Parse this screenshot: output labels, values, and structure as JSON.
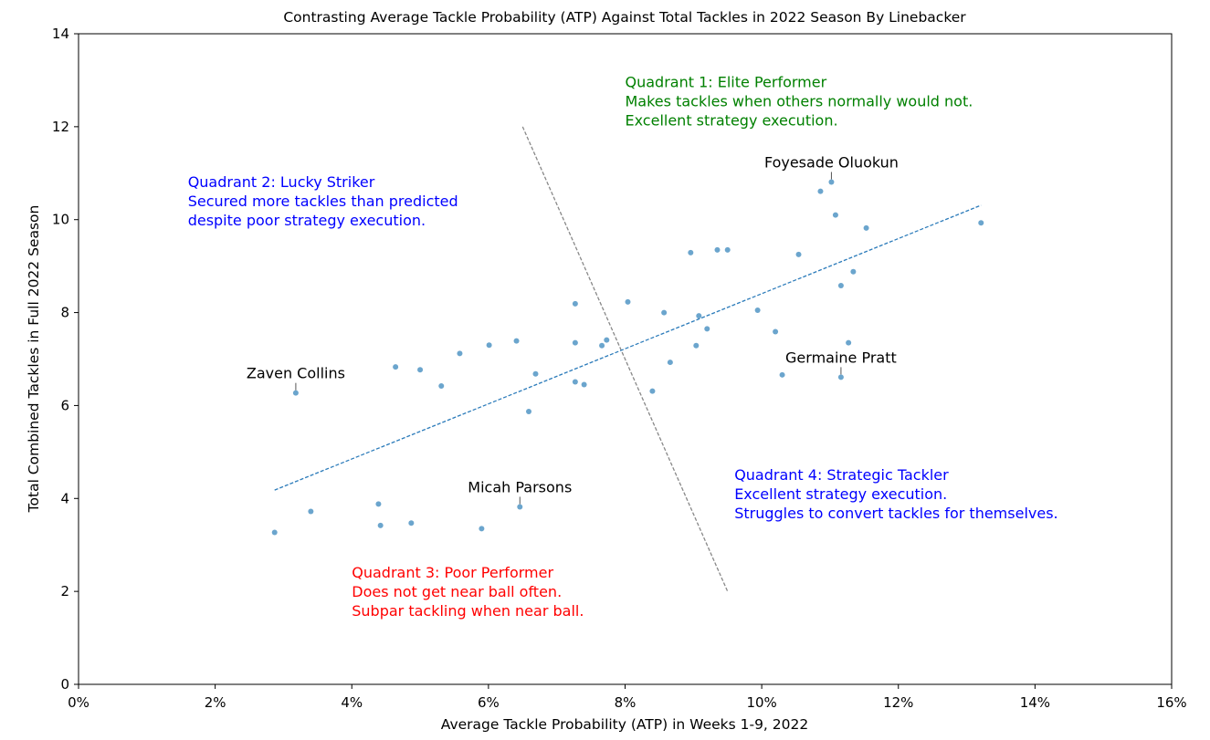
{
  "chart_data": {
    "type": "scatter",
    "title": "Contrasting Average Tackle Probability (ATP) Against Total Tackles in 2022 Season By Linebacker",
    "xlabel": "Average Tackle Probability (ATP) in Weeks 1-9, 2022",
    "ylabel": "Total Combined Tackles in Full 2022 Season",
    "xlim": [
      0,
      16
    ],
    "ylim": [
      0,
      14
    ],
    "x_ticks": [
      0,
      2,
      4,
      6,
      8,
      10,
      12,
      14,
      16
    ],
    "x_tick_labels": [
      "0%",
      "2%",
      "4%",
      "6%",
      "8%",
      "10%",
      "12%",
      "14%",
      "16%"
    ],
    "y_ticks": [
      0,
      2,
      4,
      6,
      8,
      10,
      12,
      14
    ],
    "y_tick_labels": [
      "0",
      "2",
      "4",
      "6",
      "8",
      "10",
      "12",
      "14"
    ],
    "grid": false,
    "point_color": "#5b9bc8",
    "points": [
      {
        "x": 2.87,
        "y": 3.27
      },
      {
        "x": 3.4,
        "y": 3.72
      },
      {
        "x": 3.18,
        "y": 6.27
      },
      {
        "x": 4.39,
        "y": 3.88
      },
      {
        "x": 4.42,
        "y": 3.42
      },
      {
        "x": 4.87,
        "y": 3.47
      },
      {
        "x": 5.9,
        "y": 3.35
      },
      {
        "x": 6.46,
        "y": 3.82
      },
      {
        "x": 4.64,
        "y": 6.83
      },
      {
        "x": 5.0,
        "y": 6.77
      },
      {
        "x": 5.31,
        "y": 6.42
      },
      {
        "x": 5.58,
        "y": 7.12
      },
      {
        "x": 6.01,
        "y": 7.3
      },
      {
        "x": 6.41,
        "y": 7.39
      },
      {
        "x": 6.59,
        "y": 5.87
      },
      {
        "x": 6.69,
        "y": 6.68
      },
      {
        "x": 7.27,
        "y": 8.19
      },
      {
        "x": 7.27,
        "y": 7.35
      },
      {
        "x": 7.27,
        "y": 6.51
      },
      {
        "x": 7.4,
        "y": 6.45
      },
      {
        "x": 7.66,
        "y": 7.29
      },
      {
        "x": 7.73,
        "y": 7.41
      },
      {
        "x": 8.04,
        "y": 8.23
      },
      {
        "x": 8.4,
        "y": 6.31
      },
      {
        "x": 8.57,
        "y": 8.0
      },
      {
        "x": 8.66,
        "y": 6.93
      },
      {
        "x": 8.96,
        "y": 9.29
      },
      {
        "x": 9.04,
        "y": 7.29
      },
      {
        "x": 9.08,
        "y": 7.93
      },
      {
        "x": 9.2,
        "y": 7.65
      },
      {
        "x": 9.35,
        "y": 9.35
      },
      {
        "x": 9.5,
        "y": 9.35
      },
      {
        "x": 9.94,
        "y": 8.05
      },
      {
        "x": 10.2,
        "y": 7.59
      },
      {
        "x": 10.3,
        "y": 6.66
      },
      {
        "x": 10.54,
        "y": 9.25
      },
      {
        "x": 10.86,
        "y": 10.61
      },
      {
        "x": 11.02,
        "y": 10.81
      },
      {
        "x": 11.08,
        "y": 10.1
      },
      {
        "x": 11.16,
        "y": 8.58
      },
      {
        "x": 11.16,
        "y": 6.61
      },
      {
        "x": 11.27,
        "y": 7.35
      },
      {
        "x": 11.34,
        "y": 8.88
      },
      {
        "x": 11.53,
        "y": 9.82
      },
      {
        "x": 13.21,
        "y": 9.93
      }
    ],
    "trend_line": {
      "x": [
        2.87,
        13.21
      ],
      "y": [
        4.18,
        10.31
      ],
      "color": "#2b7bba"
    },
    "divider_line": {
      "x": [
        6.5,
        9.5
      ],
      "y": [
        12.0,
        2.0
      ],
      "color": "#888888"
    },
    "player_labels": [
      {
        "name": "Foyesade Oluokun",
        "x": 11.02,
        "y": 10.81
      },
      {
        "name": "Zaven Collins",
        "x": 3.18,
        "y": 6.27
      },
      {
        "name": "Germaine Pratt",
        "x": 11.16,
        "y": 6.61
      },
      {
        "name": "Micah Parsons",
        "x": 6.46,
        "y": 3.82
      }
    ],
    "quadrant_annotations": [
      {
        "lines": [
          "Quadrant 1: Elite Performer",
          "Makes tackles when others normally would not.",
          "Excellent strategy execution."
        ],
        "x": 8.0,
        "y": 12.85,
        "color": "#008000"
      },
      {
        "lines": [
          "Quadrant 2: Lucky Striker",
          "Secured more tackles than predicted",
          "despite poor strategy execution."
        ],
        "x": 1.6,
        "y": 10.7,
        "color": "#0000ff"
      },
      {
        "lines": [
          "Quadrant 3: Poor Performer",
          "Does not get near ball often.",
          "Subpar tackling when near ball."
        ],
        "x": 4.0,
        "y": 2.3,
        "color": "#ff0000"
      },
      {
        "lines": [
          "Quadrant 4: Strategic Tackler",
          "Excellent strategy execution.",
          "Struggles to convert tackles for themselves."
        ],
        "x": 9.6,
        "y": 4.4,
        "color": "#0000ff"
      }
    ]
  }
}
